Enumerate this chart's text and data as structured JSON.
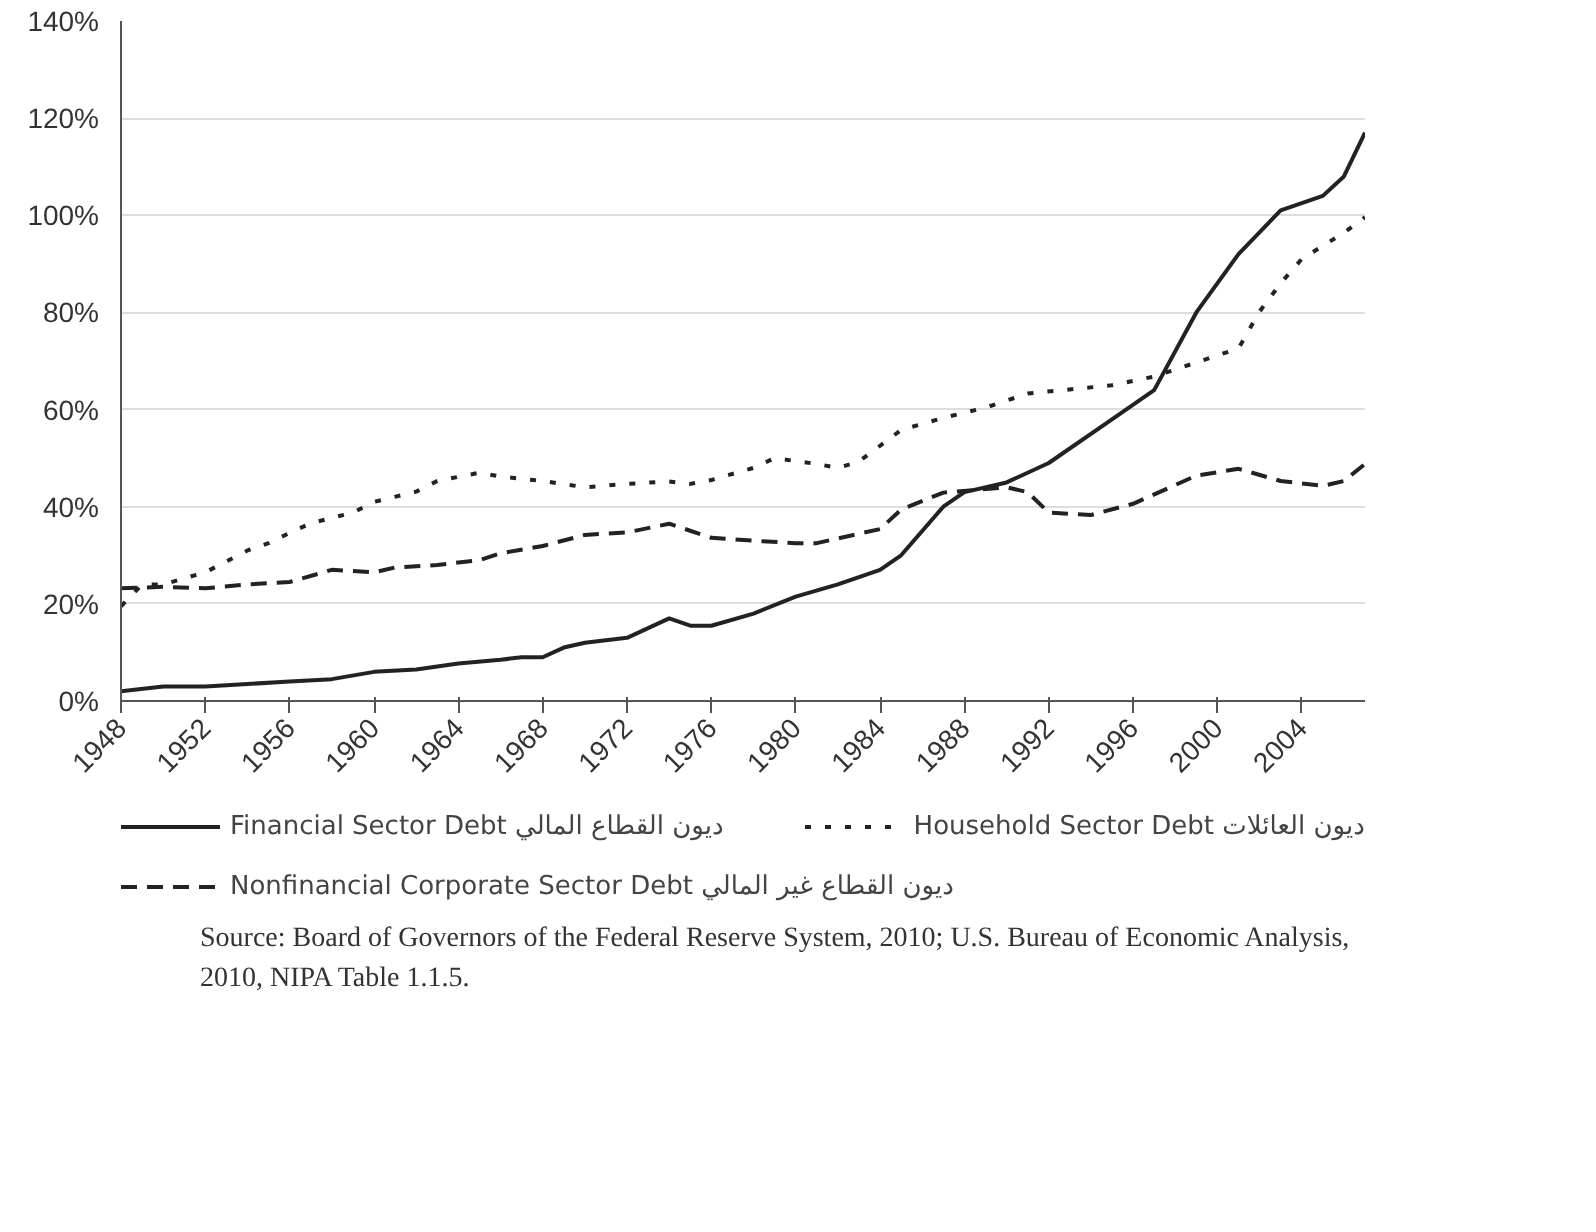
{
  "chart_data": {
    "type": "line",
    "xlim": [
      1948,
      2007
    ],
    "xticks": [
      1948,
      1952,
      1956,
      1960,
      1964,
      1968,
      1972,
      1976,
      1980,
      1984,
      1988,
      1992,
      1996,
      2000,
      2004
    ],
    "ylim": [
      0,
      140
    ],
    "yticks": [
      {
        "value": 0,
        "label": "0%"
      },
      {
        "value": 20,
        "label": "20%"
      },
      {
        "value": 40,
        "label": "40%"
      },
      {
        "value": 60,
        "label": "60%"
      },
      {
        "value": 80,
        "label": "80%"
      },
      {
        "value": 100,
        "label": "100%"
      },
      {
        "value": 120,
        "label": "120%"
      },
      {
        "value": 140,
        "label": "140%"
      }
    ],
    "grid": "y",
    "legend": "bottom",
    "marker": "none",
    "series": [
      {
        "name": "Financial Sector Debt ديون القطاع المالي",
        "color": "#222222",
        "line_style": "solid",
        "x": [
          1948,
          1950,
          1952,
          1954,
          1956,
          1958,
          1960,
          1962,
          1964,
          1966,
          1967,
          1968,
          1969,
          1970,
          1972,
          1974,
          1975,
          1976,
          1978,
          1980,
          1982,
          1984,
          1985,
          1987,
          1988,
          1990,
          1992,
          1995,
          1997,
          1999,
          2001,
          2003,
          2005,
          2006,
          2007
        ],
        "values": [
          2,
          3,
          3,
          3.5,
          4,
          4.5,
          6,
          6.5,
          7.7,
          8.5,
          9,
          9,
          11,
          12,
          13,
          17,
          15.5,
          15.5,
          18,
          21.5,
          24,
          27,
          30,
          40,
          43,
          45,
          49,
          58,
          64,
          80,
          92,
          101,
          104,
          108,
          117
        ]
      },
      {
        "name": "Household Sector Debt ديون العائلات",
        "color": "#222222",
        "line_style": "dotted",
        "x": [
          1948,
          1949,
          1950,
          1952,
          1954,
          1955,
          1956,
          1957,
          1959,
          1960,
          1962,
          1963,
          1965,
          1966,
          1968,
          1970,
          1972,
          1974,
          1975,
          1976,
          1978,
          1979,
          1981,
          1982,
          1983,
          1985,
          1987,
          1989,
          1991,
          1995,
          1997,
          1999,
          2001,
          2002,
          2003,
          2004,
          2006,
          2007
        ],
        "values": [
          19.5,
          24,
          24,
          26.5,
          31,
          32.5,
          34.6,
          36.6,
          38.8,
          41,
          43.1,
          45.3,
          47,
          46.2,
          45.3,
          44,
          44.7,
          45.2,
          44.7,
          45.5,
          48,
          50,
          48.8,
          48,
          49.3,
          55.8,
          58.3,
          60.4,
          63.3,
          65,
          66.8,
          69.7,
          72.6,
          80.2,
          86,
          91,
          96.4,
          99.6
        ]
      },
      {
        "name": "Nonfinancial Corporate Sector Debt ديون القطاع غير المالي",
        "color": "#222222",
        "line_style": "dashed",
        "x": [
          1948,
          1950,
          1952,
          1954,
          1956,
          1958,
          1960,
          1961,
          1963,
          1965,
          1966,
          1968,
          1970,
          1972,
          1974,
          1976,
          1978,
          1980,
          1981,
          1984,
          1985,
          1987,
          1990,
          1991,
          1992,
          1994,
          1996,
          1999,
          2001,
          2003,
          2005,
          2006,
          2007
        ],
        "values": [
          23.2,
          23.5,
          23.2,
          24,
          24.5,
          27,
          26.5,
          27.5,
          28,
          29,
          30.4,
          31.9,
          34.2,
          34.7,
          36.5,
          33.6,
          33,
          32.5,
          32.5,
          35.4,
          39.4,
          42.9,
          44,
          43,
          38.8,
          38.3,
          40.6,
          46.4,
          47.8,
          45.3,
          44.3,
          45.3,
          48.8
        ]
      }
    ],
    "annotations": [
      "Source: Board of Governors of the Federal Reserve System, 2010; U.S. Bureau of Economic Analysis, 2010, NIPA Table 1.1.5."
    ]
  }
}
